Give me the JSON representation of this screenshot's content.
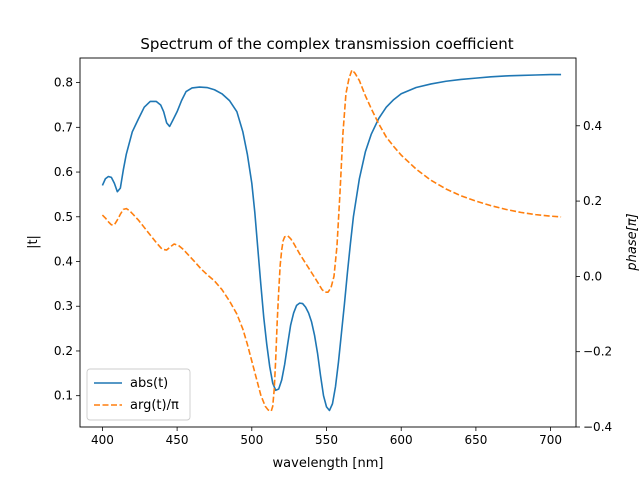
{
  "chart_data": {
    "type": "line",
    "title": "Spectrum of the complex transmission coefficient",
    "xlabel": "wavelength [nm]",
    "ylabel_left": "|t|",
    "ylabel_right": "phase[π]",
    "xlim": [
      385,
      717
    ],
    "ylim_left": [
      0.03,
      0.855
    ],
    "ylim_right": [
      -0.4,
      0.58
    ],
    "xticks": [
      400,
      450,
      500,
      550,
      600,
      650,
      700
    ],
    "yticks_left": [
      0.1,
      0.2,
      0.3,
      0.4,
      0.5,
      0.6,
      0.7,
      0.8
    ],
    "yticks_right": [
      -0.4,
      -0.2,
      0.0,
      0.2,
      0.4
    ],
    "xtick_labels": [
      "400",
      "450",
      "500",
      "550",
      "600",
      "650",
      "700"
    ],
    "ytick_labels_left": [
      "0.1",
      "0.2",
      "0.3",
      "0.4",
      "0.5",
      "0.6",
      "0.7",
      "0.8"
    ],
    "ytick_labels_right": [
      "−0.4",
      "−0.2",
      "0.0",
      "0.2",
      "0.4"
    ],
    "grid": false,
    "legend_position": "lower-left",
    "series": [
      {
        "name": "abs(t)",
        "axis": "left",
        "color": "#1f77b4",
        "dash": "solid",
        "points": [
          [
            400,
            0.57
          ],
          [
            402,
            0.585
          ],
          [
            404,
            0.59
          ],
          [
            406,
            0.588
          ],
          [
            408,
            0.575
          ],
          [
            410,
            0.556
          ],
          [
            412,
            0.564
          ],
          [
            414,
            0.605
          ],
          [
            416,
            0.64
          ],
          [
            420,
            0.69
          ],
          [
            424,
            0.718
          ],
          [
            428,
            0.745
          ],
          [
            432,
            0.758
          ],
          [
            436,
            0.758
          ],
          [
            439,
            0.75
          ],
          [
            441,
            0.735
          ],
          [
            443,
            0.71
          ],
          [
            445,
            0.702
          ],
          [
            447,
            0.715
          ],
          [
            450,
            0.735
          ],
          [
            453,
            0.76
          ],
          [
            456,
            0.78
          ],
          [
            460,
            0.788
          ],
          [
            465,
            0.79
          ],
          [
            470,
            0.789
          ],
          [
            475,
            0.784
          ],
          [
            480,
            0.775
          ],
          [
            485,
            0.76
          ],
          [
            490,
            0.735
          ],
          [
            494,
            0.69
          ],
          [
            497,
            0.64
          ],
          [
            500,
            0.575
          ],
          [
            502,
            0.51
          ],
          [
            504,
            0.43
          ],
          [
            506,
            0.35
          ],
          [
            508,
            0.275
          ],
          [
            510,
            0.215
          ],
          [
            512,
            0.165
          ],
          [
            514,
            0.128
          ],
          [
            516,
            0.112
          ],
          [
            518,
            0.115
          ],
          [
            520,
            0.135
          ],
          [
            522,
            0.17
          ],
          [
            524,
            0.215
          ],
          [
            526,
            0.258
          ],
          [
            528,
            0.285
          ],
          [
            530,
            0.302
          ],
          [
            532,
            0.307
          ],
          [
            534,
            0.306
          ],
          [
            536,
            0.298
          ],
          [
            538,
            0.285
          ],
          [
            540,
            0.265
          ],
          [
            542,
            0.235
          ],
          [
            544,
            0.195
          ],
          [
            546,
            0.145
          ],
          [
            548,
            0.1
          ],
          [
            550,
            0.075
          ],
          [
            552,
            0.067
          ],
          [
            554,
            0.082
          ],
          [
            556,
            0.12
          ],
          [
            558,
            0.175
          ],
          [
            560,
            0.24
          ],
          [
            562,
            0.305
          ],
          [
            564,
            0.375
          ],
          [
            566,
            0.44
          ],
          [
            568,
            0.5
          ],
          [
            572,
            0.585
          ],
          [
            576,
            0.645
          ],
          [
            580,
            0.685
          ],
          [
            585,
            0.72
          ],
          [
            590,
            0.745
          ],
          [
            595,
            0.762
          ],
          [
            600,
            0.775
          ],
          [
            610,
            0.789
          ],
          [
            620,
            0.797
          ],
          [
            630,
            0.803
          ],
          [
            640,
            0.807
          ],
          [
            650,
            0.81
          ],
          [
            660,
            0.813
          ],
          [
            670,
            0.815
          ],
          [
            680,
            0.816
          ],
          [
            690,
            0.817
          ],
          [
            700,
            0.818
          ],
          [
            707,
            0.818
          ]
        ]
      },
      {
        "name": "arg(t)/π",
        "axis": "right",
        "color": "#ff7f0e",
        "dash": "dashed",
        "points": [
          [
            400,
            0.163
          ],
          [
            402,
            0.155
          ],
          [
            404,
            0.145
          ],
          [
            406,
            0.137
          ],
          [
            408,
            0.137
          ],
          [
            410,
            0.15
          ],
          [
            412,
            0.165
          ],
          [
            414,
            0.178
          ],
          [
            416,
            0.18
          ],
          [
            418,
            0.175
          ],
          [
            420,
            0.167
          ],
          [
            424,
            0.15
          ],
          [
            428,
            0.13
          ],
          [
            432,
            0.11
          ],
          [
            436,
            0.09
          ],
          [
            440,
            0.072
          ],
          [
            443,
            0.07
          ],
          [
            446,
            0.08
          ],
          [
            448,
            0.086
          ],
          [
            451,
            0.082
          ],
          [
            454,
            0.072
          ],
          [
            458,
            0.055
          ],
          [
            462,
            0.038
          ],
          [
            466,
            0.02
          ],
          [
            470,
            0.005
          ],
          [
            475,
            -0.012
          ],
          [
            480,
            -0.035
          ],
          [
            485,
            -0.065
          ],
          [
            490,
            -0.1
          ],
          [
            494,
            -0.14
          ],
          [
            497,
            -0.18
          ],
          [
            500,
            -0.225
          ],
          [
            503,
            -0.27
          ],
          [
            506,
            -0.315
          ],
          [
            509,
            -0.345
          ],
          [
            511,
            -0.355
          ],
          [
            513,
            -0.358
          ],
          [
            514,
            -0.345
          ],
          [
            515,
            -0.3
          ],
          [
            516,
            -0.22
          ],
          [
            517,
            -0.12
          ],
          [
            518,
            -0.04
          ],
          [
            519,
            0.03
          ],
          [
            520,
            0.07
          ],
          [
            521,
            0.095
          ],
          [
            522,
            0.105
          ],
          [
            524,
            0.108
          ],
          [
            526,
            0.1
          ],
          [
            528,
            0.088
          ],
          [
            532,
            0.06
          ],
          [
            536,
            0.035
          ],
          [
            540,
            0.01
          ],
          [
            544,
            -0.015
          ],
          [
            547,
            -0.035
          ],
          [
            549,
            -0.042
          ],
          [
            551,
            -0.042
          ],
          [
            553,
            -0.03
          ],
          [
            555,
            0.0
          ],
          [
            557,
            0.08
          ],
          [
            559,
            0.22
          ],
          [
            561,
            0.38
          ],
          [
            563,
            0.485
          ],
          [
            565,
            0.525
          ],
          [
            567,
            0.548
          ],
          [
            569,
            0.54
          ],
          [
            572,
            0.52
          ],
          [
            576,
            0.48
          ],
          [
            580,
            0.445
          ],
          [
            585,
            0.405
          ],
          [
            590,
            0.37
          ],
          [
            595,
            0.345
          ],
          [
            600,
            0.322
          ],
          [
            610,
            0.285
          ],
          [
            620,
            0.255
          ],
          [
            630,
            0.232
          ],
          [
            640,
            0.214
          ],
          [
            650,
            0.2
          ],
          [
            660,
            0.188
          ],
          [
            670,
            0.178
          ],
          [
            680,
            0.17
          ],
          [
            690,
            0.164
          ],
          [
            700,
            0.16
          ],
          [
            707,
            0.158
          ]
        ]
      }
    ]
  }
}
